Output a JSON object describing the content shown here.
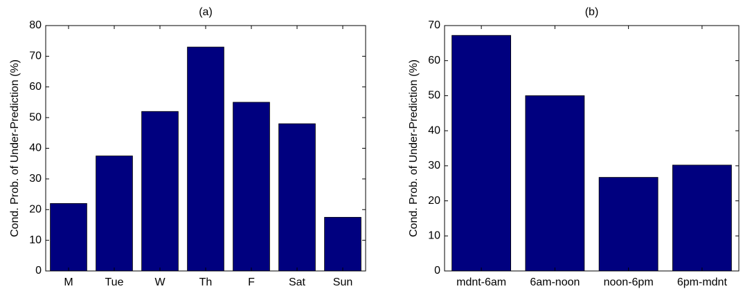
{
  "chart_data": [
    {
      "type": "bar",
      "title": "(a)",
      "y_label": "Cond. Prob. of Under-Prediction (%)",
      "categories": [
        "M",
        "Tue",
        "W",
        "Th",
        "F",
        "Sat",
        "Sun"
      ],
      "values": [
        22,
        37.5,
        52,
        73,
        55,
        48,
        17.5
      ],
      "color": "#00007f",
      "ylim": [
        0,
        80
      ],
      "yticks": [
        0,
        10,
        20,
        30,
        40,
        50,
        60,
        70,
        80
      ],
      "grid": false
    },
    {
      "type": "bar",
      "title": "(b)",
      "y_label": "Cond. Prob. of Under-Prediction (%)",
      "categories": [
        "mdnt-6am",
        "6am-noon",
        "noon-6pm",
        "6pm-mdnt"
      ],
      "values": [
        67.2,
        50,
        26.7,
        30.2
      ],
      "color": "#00007f",
      "ylim": [
        0,
        70
      ],
      "yticks": [
        0,
        10,
        20,
        30,
        40,
        50,
        60,
        70
      ],
      "grid": false
    }
  ]
}
